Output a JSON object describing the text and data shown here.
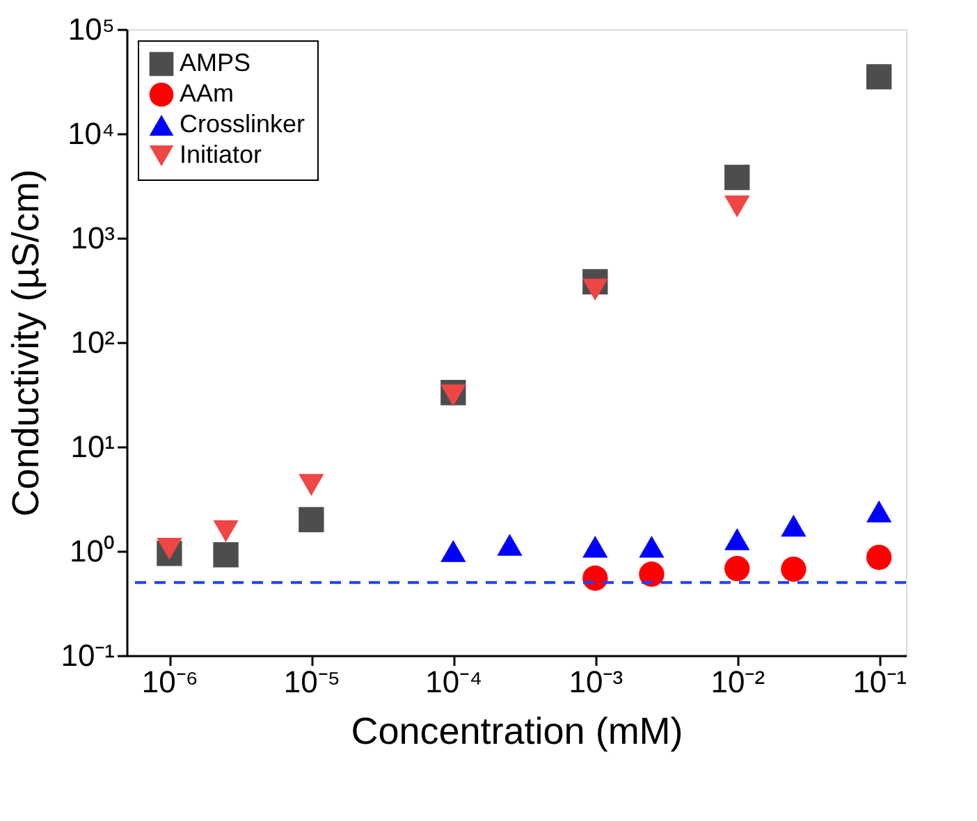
{
  "chart_data": {
    "type": "scatter",
    "xlabel": "Concentration (mM)",
    "ylabel": "Conductivity (µS/cm)",
    "log": "xy",
    "grid": false,
    "legend": "top left",
    "xlim": [
      5e-07,
      0.155
    ],
    "ylim": [
      0.1,
      100000
    ],
    "xticks": [
      {
        "value": 1e-06,
        "label": "10⁻⁶"
      },
      {
        "value": 1e-05,
        "label": "10⁻⁵"
      },
      {
        "value": 0.0001,
        "label": "10⁻⁴"
      },
      {
        "value": 0.001,
        "label": "10⁻³"
      },
      {
        "value": 0.01,
        "label": "10⁻²"
      },
      {
        "value": 0.1,
        "label": "10⁻¹"
      }
    ],
    "yticks": [
      {
        "value": 0.1,
        "label": "10⁻¹"
      },
      {
        "value": 1,
        "label": "10⁰"
      },
      {
        "value": 10,
        "label": "10¹"
      },
      {
        "value": 100,
        "label": "10²"
      },
      {
        "value": 1000,
        "label": "10³"
      },
      {
        "value": 10000,
        "label": "10⁴"
      },
      {
        "value": 100000,
        "label": "10⁵"
      }
    ],
    "ref_lines": [
      {
        "axis": "y",
        "value": 0.5,
        "color": "#1f3fff",
        "line_style": "dashed"
      }
    ],
    "series": [
      {
        "name": "AMPS",
        "color": "#4d4d4d",
        "marker": "square",
        "x": [
          1e-06,
          2.5e-06,
          1e-05,
          0.0001,
          0.001,
          0.01,
          0.1
        ],
        "values": [
          0.95,
          0.92,
          2.0,
          33,
          380,
          3800,
          35000
        ]
      },
      {
        "name": "AAm",
        "color": "#ff0000",
        "marker": "circle",
        "x": [
          0.001,
          0.0025,
          0.01,
          0.025,
          0.1
        ],
        "values": [
          0.55,
          0.6,
          0.68,
          0.67,
          0.87
        ]
      },
      {
        "name": "Crosslinker",
        "color": "#0000ff",
        "marker": "triangle",
        "x": [
          0.0001,
          0.00025,
          0.001,
          0.0025,
          0.01,
          0.025,
          0.1
        ],
        "values": [
          1.0,
          1.15,
          1.1,
          1.1,
          1.3,
          1.75,
          2.4
        ]
      },
      {
        "name": "Initiator",
        "color": "#f04545",
        "marker": "triangle-down",
        "x": [
          1e-06,
          2.5e-06,
          1e-05,
          0.0001,
          0.001,
          0.01
        ],
        "values": [
          1.05,
          1.55,
          4.3,
          31,
          320,
          2000
        ]
      }
    ]
  }
}
